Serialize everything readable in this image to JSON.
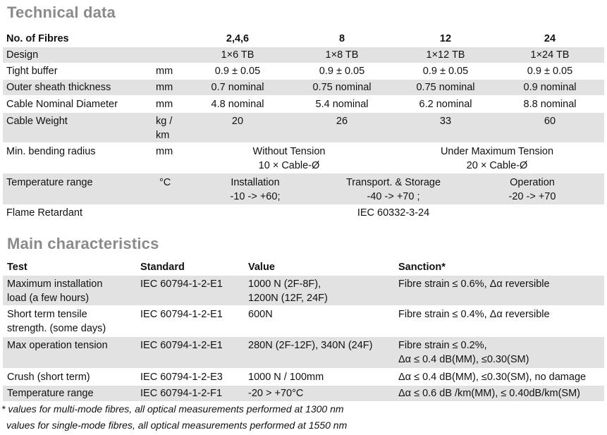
{
  "technical": {
    "title": "Technical data",
    "header": {
      "label": "No. of Fibres",
      "cols": [
        "2,4,6",
        "8",
        "12",
        "24"
      ]
    },
    "design": {
      "label": "Design",
      "unit": "",
      "values": [
        "1×6 TB",
        "1×8 TB",
        "1×12 TB",
        "1×24 TB"
      ]
    },
    "tight_buffer": {
      "label": "Tight buffer",
      "unit": "mm",
      "values": [
        "0.9 ± 0.05",
        "0.9 ± 0.05",
        "0.9 ± 0.05",
        "0.9 ± 0.05"
      ]
    },
    "outer_sheath": {
      "label": "Outer sheath thickness",
      "unit": "mm",
      "values": [
        "0.7 nominal",
        "0.75 nominal",
        "0.75 nominal",
        "0.9 nominal"
      ]
    },
    "diameter": {
      "label": "Cable Nominal Diameter",
      "unit": "mm",
      "values": [
        "4.8 nominal",
        "5.4 nominal",
        "6.2 nominal",
        "8.8 nominal"
      ]
    },
    "weight": {
      "label": "Cable Weight",
      "unit": "kg /\nkm",
      "values": [
        "20",
        "26",
        "33",
        "60"
      ]
    },
    "bending": {
      "label": "Min. bending radius",
      "unit": "mm",
      "without_tension": "Without Tension\n10 × Cable-Ø",
      "max_tension": "Under Maximum Tension\n20 × Cable-Ø"
    },
    "temperature": {
      "label": "Temperature range",
      "unit": "°C",
      "installation": "Installation\n-10 -> +60;",
      "transport": "Transport. & Storage\n-40 -> +70 ;",
      "operation": "Operation\n-20 -> +70"
    },
    "flame": {
      "label": "Flame Retardant",
      "value": "IEC 60332-3-24"
    }
  },
  "characteristics": {
    "title": "Main characteristics",
    "headers": [
      "Test",
      "Standard",
      "Value",
      "Sanction*"
    ],
    "rows": [
      {
        "test": "Maximum installation\nload (a few hours)",
        "standard": "IEC 60794-1-2-E1",
        "value": "1000 N (2F-8F),\n1200N (12F, 24F)",
        "sanction": "Fibre strain ≤ 0.6%, Δα reversible"
      },
      {
        "test": "Short term tensile\nstrength. (some days)",
        "standard": "IEC 60794-1-2-E1",
        "value": "600N",
        "sanction": "Fibre strain ≤ 0.4%, Δα reversible"
      },
      {
        "test": "Max operation tension",
        "standard": "IEC 60794-1-2-E1",
        "value": "280N (2F-12F), 340N (24F)",
        "sanction": "Fibre strain ≤ 0.2%,\nΔα ≤ 0.4 dB(MM), ≤0.30(SM)"
      },
      {
        "test": "Crush (short term)",
        "standard": "IEC 60794-1-2-E3",
        "value": "1000 N / 100mm",
        "sanction": "Δα ≤ 0.4 dB(MM), ≤0.30(SM), no damage"
      },
      {
        "test": "Temperature range",
        "standard": "IEC 60794-1-2-F1",
        "value": "-20 > +70°C",
        "sanction": "Δα ≤ 0.6 dB /km(MM), ≤ 0.40dB/km(SM)"
      }
    ],
    "notes": [
      "* values for multi-mode fibres, all optical measurements performed at 1300 nm",
      "values for single-mode fibres, all optical measurements performed at 1550 nm"
    ]
  },
  "colors": {
    "heading": "#8a8a8a",
    "row_shade": "#e2e2e2",
    "text": "#111111"
  }
}
